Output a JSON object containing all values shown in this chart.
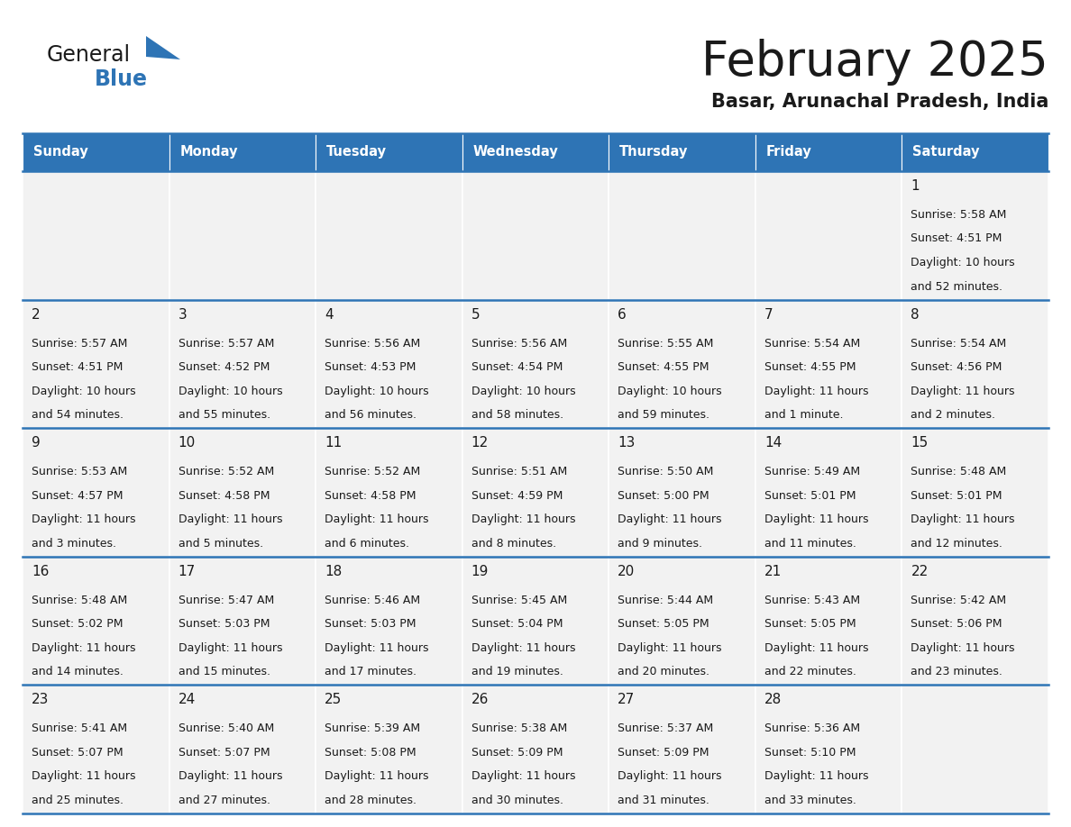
{
  "title": "February 2025",
  "subtitle": "Basar, Arunachal Pradesh, India",
  "header_bg": "#2E74B5",
  "header_text_color": "#FFFFFF",
  "cell_bg": "#F2F2F2",
  "separator_color": "#2E74B5",
  "title_color": "#1a1a1a",
  "subtitle_color": "#1a1a1a",
  "day_number_color": "#1a1a1a",
  "info_color": "#1a1a1a",
  "logo_general_color": "#1a1a1a",
  "logo_blue_color": "#2E74B5",
  "day_names": [
    "Sunday",
    "Monday",
    "Tuesday",
    "Wednesday",
    "Thursday",
    "Friday",
    "Saturday"
  ],
  "calendar": [
    [
      {
        "day": "",
        "info": ""
      },
      {
        "day": "",
        "info": ""
      },
      {
        "day": "",
        "info": ""
      },
      {
        "day": "",
        "info": ""
      },
      {
        "day": "",
        "info": ""
      },
      {
        "day": "",
        "info": ""
      },
      {
        "day": "1",
        "info": "Sunrise: 5:58 AM\nSunset: 4:51 PM\nDaylight: 10 hours\nand 52 minutes."
      }
    ],
    [
      {
        "day": "2",
        "info": "Sunrise: 5:57 AM\nSunset: 4:51 PM\nDaylight: 10 hours\nand 54 minutes."
      },
      {
        "day": "3",
        "info": "Sunrise: 5:57 AM\nSunset: 4:52 PM\nDaylight: 10 hours\nand 55 minutes."
      },
      {
        "day": "4",
        "info": "Sunrise: 5:56 AM\nSunset: 4:53 PM\nDaylight: 10 hours\nand 56 minutes."
      },
      {
        "day": "5",
        "info": "Sunrise: 5:56 AM\nSunset: 4:54 PM\nDaylight: 10 hours\nand 58 minutes."
      },
      {
        "day": "6",
        "info": "Sunrise: 5:55 AM\nSunset: 4:55 PM\nDaylight: 10 hours\nand 59 minutes."
      },
      {
        "day": "7",
        "info": "Sunrise: 5:54 AM\nSunset: 4:55 PM\nDaylight: 11 hours\nand 1 minute."
      },
      {
        "day": "8",
        "info": "Sunrise: 5:54 AM\nSunset: 4:56 PM\nDaylight: 11 hours\nand 2 minutes."
      }
    ],
    [
      {
        "day": "9",
        "info": "Sunrise: 5:53 AM\nSunset: 4:57 PM\nDaylight: 11 hours\nand 3 minutes."
      },
      {
        "day": "10",
        "info": "Sunrise: 5:52 AM\nSunset: 4:58 PM\nDaylight: 11 hours\nand 5 minutes."
      },
      {
        "day": "11",
        "info": "Sunrise: 5:52 AM\nSunset: 4:58 PM\nDaylight: 11 hours\nand 6 minutes."
      },
      {
        "day": "12",
        "info": "Sunrise: 5:51 AM\nSunset: 4:59 PM\nDaylight: 11 hours\nand 8 minutes."
      },
      {
        "day": "13",
        "info": "Sunrise: 5:50 AM\nSunset: 5:00 PM\nDaylight: 11 hours\nand 9 minutes."
      },
      {
        "day": "14",
        "info": "Sunrise: 5:49 AM\nSunset: 5:01 PM\nDaylight: 11 hours\nand 11 minutes."
      },
      {
        "day": "15",
        "info": "Sunrise: 5:48 AM\nSunset: 5:01 PM\nDaylight: 11 hours\nand 12 minutes."
      }
    ],
    [
      {
        "day": "16",
        "info": "Sunrise: 5:48 AM\nSunset: 5:02 PM\nDaylight: 11 hours\nand 14 minutes."
      },
      {
        "day": "17",
        "info": "Sunrise: 5:47 AM\nSunset: 5:03 PM\nDaylight: 11 hours\nand 15 minutes."
      },
      {
        "day": "18",
        "info": "Sunrise: 5:46 AM\nSunset: 5:03 PM\nDaylight: 11 hours\nand 17 minutes."
      },
      {
        "day": "19",
        "info": "Sunrise: 5:45 AM\nSunset: 5:04 PM\nDaylight: 11 hours\nand 19 minutes."
      },
      {
        "day": "20",
        "info": "Sunrise: 5:44 AM\nSunset: 5:05 PM\nDaylight: 11 hours\nand 20 minutes."
      },
      {
        "day": "21",
        "info": "Sunrise: 5:43 AM\nSunset: 5:05 PM\nDaylight: 11 hours\nand 22 minutes."
      },
      {
        "day": "22",
        "info": "Sunrise: 5:42 AM\nSunset: 5:06 PM\nDaylight: 11 hours\nand 23 minutes."
      }
    ],
    [
      {
        "day": "23",
        "info": "Sunrise: 5:41 AM\nSunset: 5:07 PM\nDaylight: 11 hours\nand 25 minutes."
      },
      {
        "day": "24",
        "info": "Sunrise: 5:40 AM\nSunset: 5:07 PM\nDaylight: 11 hours\nand 27 minutes."
      },
      {
        "day": "25",
        "info": "Sunrise: 5:39 AM\nSunset: 5:08 PM\nDaylight: 11 hours\nand 28 minutes."
      },
      {
        "day": "26",
        "info": "Sunrise: 5:38 AM\nSunset: 5:09 PM\nDaylight: 11 hours\nand 30 minutes."
      },
      {
        "day": "27",
        "info": "Sunrise: 5:37 AM\nSunset: 5:09 PM\nDaylight: 11 hours\nand 31 minutes."
      },
      {
        "day": "28",
        "info": "Sunrise: 5:36 AM\nSunset: 5:10 PM\nDaylight: 11 hours\nand 33 minutes."
      },
      {
        "day": "",
        "info": ""
      }
    ]
  ]
}
